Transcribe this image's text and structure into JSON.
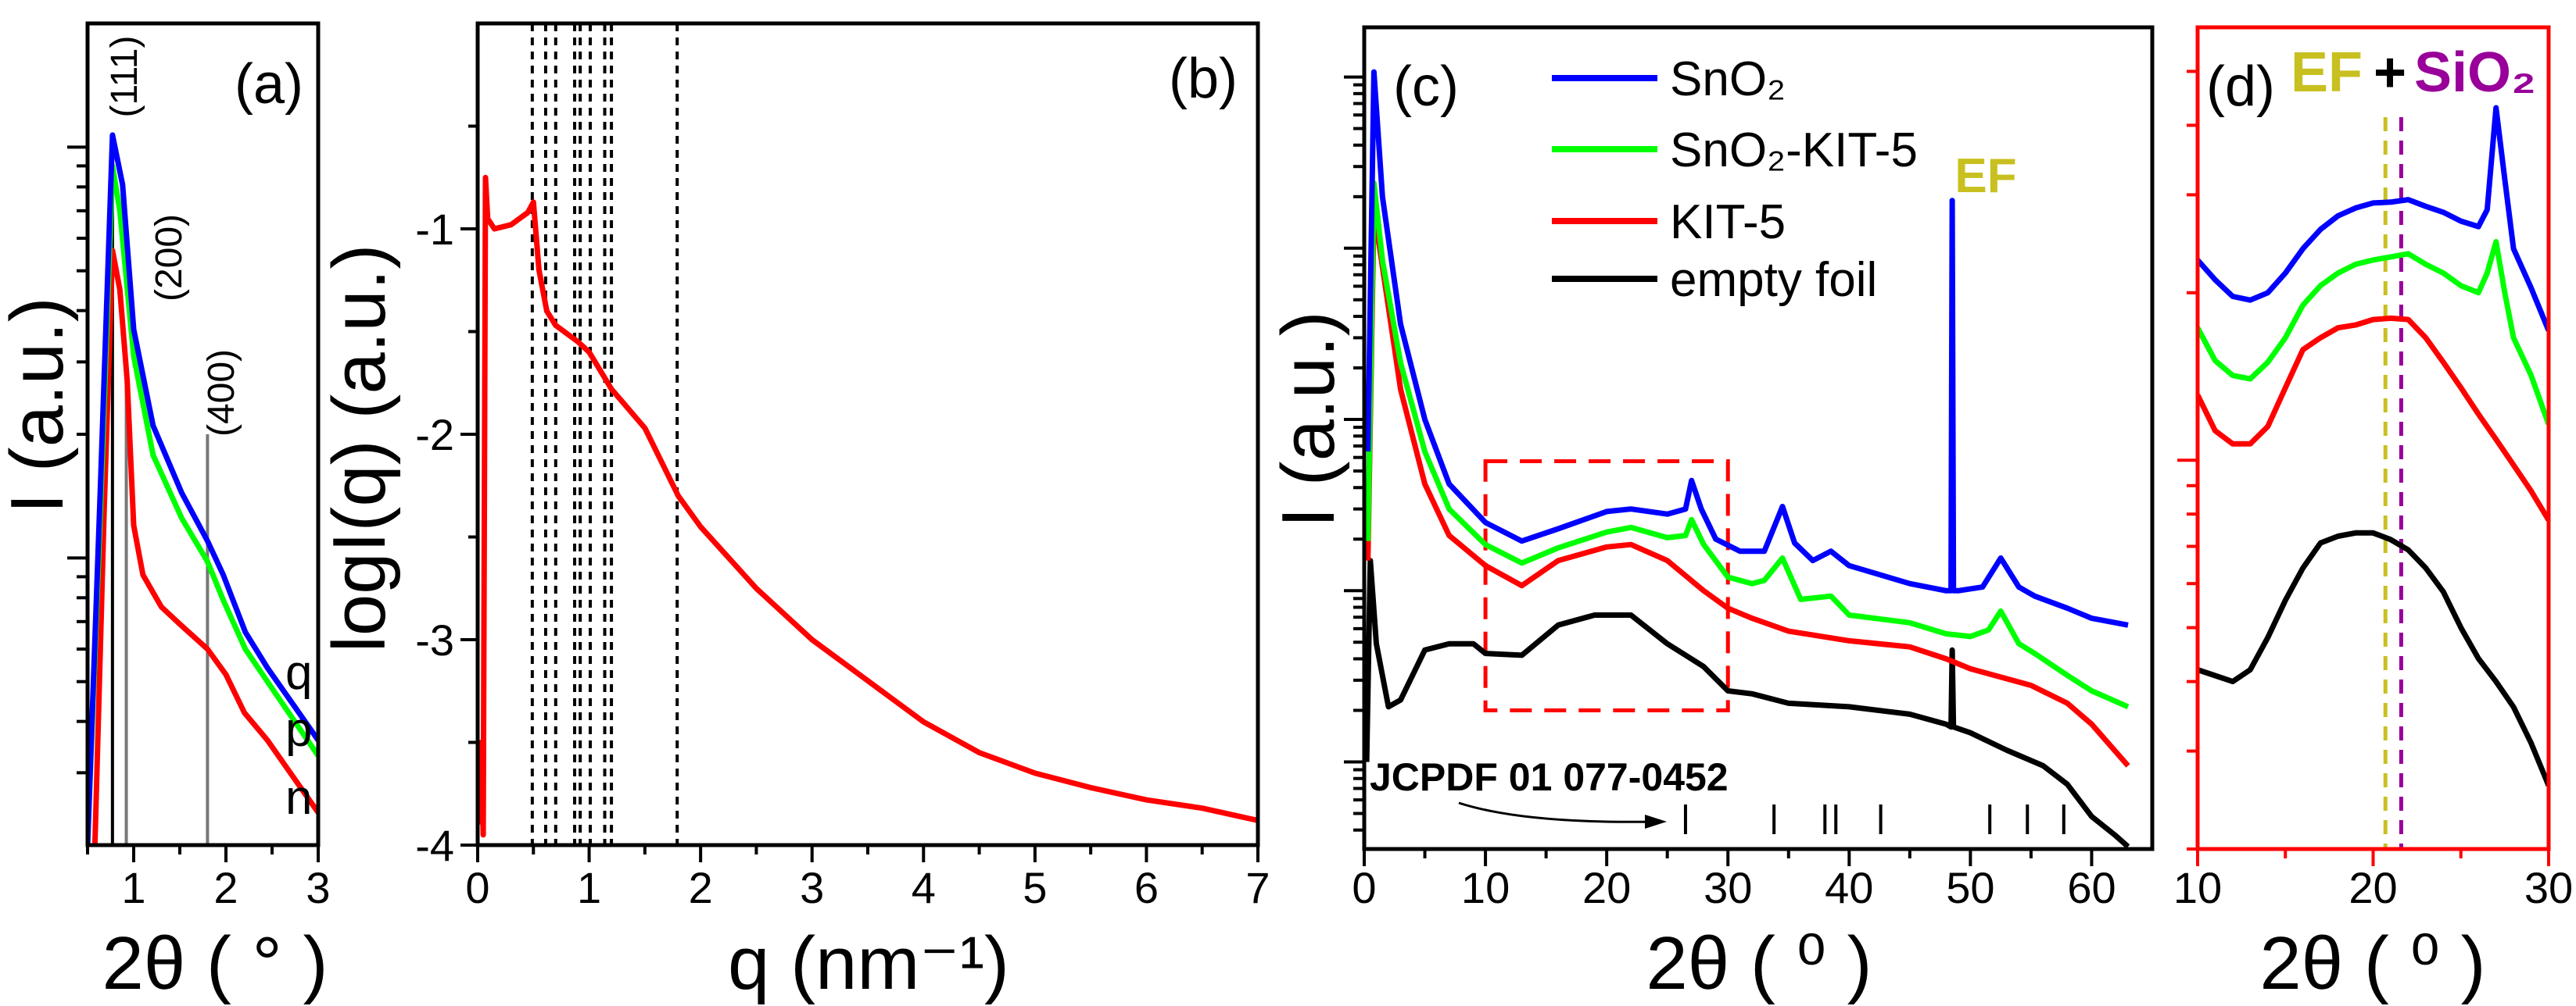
{
  "chart_data": [
    {
      "panel": "(a)",
      "type": "line",
      "xlabel": "2θ ( ° )",
      "ylabel": "I (a.u.)",
      "xlim": [
        0.5,
        3
      ],
      "ylim": [
        0.2,
        20
      ],
      "yscale": "log",
      "xticks": [
        1,
        2,
        3
      ],
      "xminor": [
        0.5,
        1.5,
        2.5
      ],
      "ymajor": [
        1,
        10
      ],
      "yminor": [
        0.3,
        0.4,
        0.5,
        0.6,
        0.7,
        0.8,
        0.9,
        2,
        3,
        4,
        5,
        6,
        7,
        8,
        9
      ],
      "ytick_labels_shown": false,
      "frame_color": "#000000",
      "series": [
        {
          "label": "q",
          "color": "#0000ff",
          "x": [
            0.5,
            0.64,
            0.77,
            0.88,
            1.0,
            1.21,
            1.52,
            1.8,
            1.97,
            2.21,
            2.45,
            3.0
          ],
          "y": [
            0.2,
            1.5,
            10.7,
            8.1,
            3.6,
            2.1,
            1.44,
            1.1,
            0.91,
            0.66,
            0.54,
            0.36
          ]
        },
        {
          "label": "p",
          "color": "#00ff00",
          "x": [
            0.5,
            0.64,
            0.77,
            0.85,
            1.0,
            1.21,
            1.52,
            1.8,
            1.97,
            2.21,
            2.45,
            3.0
          ],
          "y": [
            0.2,
            1.3,
            9.0,
            7.0,
            3.1,
            1.78,
            1.25,
            0.98,
            0.79,
            0.6,
            0.5,
            0.33
          ]
        },
        {
          "label": "n",
          "color": "#ff0000",
          "x": [
            0.58,
            0.68,
            0.77,
            0.85,
            0.93,
            1.0,
            1.1,
            1.3,
            1.5,
            1.8,
            2.0,
            2.2,
            2.45,
            3.0
          ],
          "y": [
            0.2,
            1.3,
            5.6,
            4.5,
            2.7,
            1.2,
            0.91,
            0.76,
            0.69,
            0.6,
            0.52,
            0.42,
            0.36,
            0.24
          ]
        }
      ],
      "reference_lines": [
        {
          "label": "(111)",
          "x": 0.77,
          "y_top": 10.7
        },
        {
          "label": "(200)",
          "x": 0.92,
          "y_top": 2.9
        },
        {
          "label": "(400)",
          "x": 1.8,
          "y_top": 2.0
        }
      ]
    },
    {
      "panel": "(b)",
      "type": "line",
      "xlabel": "q (nm⁻¹)",
      "ylabel": "logI(q) (a.u.)",
      "xlim": [
        0,
        7
      ],
      "ylim": [
        -4,
        0
      ],
      "yscale": "linear",
      "xticks": [
        0,
        1,
        2,
        3,
        4,
        5,
        6,
        7
      ],
      "xminor": [
        0.5,
        1.5,
        2.5,
        3.5,
        4.5,
        5.5,
        6.5
      ],
      "yticks": [
        -4,
        -3,
        -2,
        -1
      ],
      "yminor": [
        -3.5,
        -2.5,
        -1.5,
        -0.5
      ],
      "frame_color": "#000000",
      "series": [
        {
          "color": "#ff0000",
          "x": [
            0.02,
            0.03,
            0.05,
            0.07,
            0.09,
            0.15,
            0.3,
            0.45,
            0.5,
            0.55,
            0.62,
            0.7,
            0.9,
            1.0,
            1.2,
            1.5,
            1.8,
            2.0,
            2.5,
            3.0,
            3.5,
            4.0,
            4.5,
            5.0,
            5.5,
            6.0,
            6.5,
            7.0
          ],
          "y": [
            -3.9,
            -3.5,
            -3.95,
            -0.75,
            -0.95,
            -1.0,
            -0.98,
            -0.92,
            -0.87,
            -1.2,
            -1.4,
            -1.47,
            -1.55,
            -1.6,
            -1.78,
            -1.97,
            -2.3,
            -2.45,
            -2.75,
            -3.0,
            -3.2,
            -3.4,
            -3.55,
            -3.65,
            -3.72,
            -3.78,
            -3.82,
            -3.88
          ]
        }
      ],
      "dashed_lines_x": [
        0.49,
        0.61,
        0.7,
        0.87,
        0.92,
        1.01,
        1.14,
        1.2,
        1.79
      ]
    },
    {
      "panel": "(c)",
      "type": "line",
      "xlabel": "2θ ( ⁰ )",
      "ylabel": "I (a.u.)",
      "xlim": [
        0,
        65
      ],
      "ylim": [
        0.31,
        19500
      ],
      "yscale": "log",
      "xticks": [
        0,
        10,
        20,
        30,
        40,
        50,
        60
      ],
      "xminor": [
        5,
        15,
        25,
        35,
        45,
        55
      ],
      "ymajor": [
        1,
        10,
        100,
        1000,
        10000
      ],
      "ytick_labels_shown": false,
      "frame_color": "#000000",
      "legend_position": "top-center",
      "series": [
        {
          "name": "SnO₂",
          "color": "#0000ff",
          "x": [
            0.3,
            0.8,
            1.5,
            3,
            5,
            7,
            10,
            13,
            16,
            20,
            22,
            25,
            26.5,
            27,
            27.8,
            29,
            31,
            33,
            34.5,
            35.5,
            37,
            38.5,
            40,
            45,
            48,
            48.4,
            48.5,
            48.6,
            49,
            51,
            52.5,
            54,
            55.3,
            58,
            60,
            63
          ],
          "y": [
            65,
            10700,
            2000,
            360,
            100,
            42,
            25,
            19.5,
            23,
            29,
            30,
            28,
            30,
            44,
            30,
            20,
            17,
            17,
            31,
            19,
            15,
            17,
            14,
            11,
            10,
            10,
            1900,
            10,
            10,
            10.5,
            15.5,
            10.5,
            9.3,
            7.9,
            6.9,
            6.3
          ]
        },
        {
          "name": "SnO₂-KIT-5",
          "color": "#00ff00",
          "x": [
            0.3,
            0.8,
            1.5,
            3,
            5,
            7,
            10,
            13,
            16,
            20,
            22,
            25,
            26.5,
            27,
            28,
            30,
            32,
            33,
            34.5,
            36,
            38.5,
            40,
            45,
            48,
            50,
            51.5,
            52.5,
            54,
            55.3,
            58,
            60,
            63
          ],
          "y": [
            19.5,
            2400,
            850,
            214,
            65,
            30,
            18.6,
            14.5,
            17.8,
            22,
            23.4,
            20.4,
            21,
            26,
            18.6,
            12,
            11,
            11.5,
            15.5,
            8.9,
            9.3,
            7.2,
            6.5,
            5.6,
            5.4,
            5.9,
            7.6,
            4.9,
            4.3,
            3.2,
            2.6,
            2.1
          ]
        },
        {
          "name": "KIT-5",
          "color": "#ff0000",
          "x": [
            0.3,
            0.8,
            1.5,
            3,
            5,
            7,
            10,
            13,
            16,
            20,
            22,
            25,
            28,
            30,
            32,
            35,
            40,
            45,
            48,
            50,
            55,
            58,
            60,
            63
          ],
          "y": [
            15,
            1700,
            780,
            150,
            42,
            21,
            14,
            10.7,
            15,
            18,
            18.6,
            15,
            10,
            7.9,
            6.9,
            5.8,
            5.1,
            4.7,
            4.0,
            3.5,
            2.8,
            2.2,
            1.66,
            0.95
          ]
        },
        {
          "name": "empty foil",
          "color": "#000000",
          "x": [
            0.2,
            0.5,
            1,
            2,
            3,
            5,
            7,
            9,
            10,
            13,
            16,
            19,
            22,
            25,
            28,
            30,
            32,
            35,
            40,
            45,
            48,
            48.4,
            48.5,
            48.6,
            50,
            53,
            56,
            58,
            60,
            62,
            63
          ],
          "y": [
            1.0,
            15,
            4.9,
            2.1,
            2.3,
            4.5,
            4.9,
            4.9,
            4.3,
            4.2,
            6.3,
            7.2,
            7.2,
            4.9,
            3.6,
            2.6,
            2.5,
            2.2,
            2.1,
            1.9,
            1.66,
            1.6,
            4.5,
            1.6,
            1.48,
            1.17,
            0.95,
            0.74,
            0.48,
            0.37,
            0.32
          ]
        }
      ],
      "highlight_region": {
        "x": [
          10,
          30
        ],
        "y": [
          2,
          57
        ],
        "color": "#ff0000"
      },
      "annotations": {
        "ef_label": "EF",
        "ef_color": "#c8c020",
        "reference_label": "JCPDF 01 077-0452"
      },
      "reference_ticks_x": [
        26.5,
        33.8,
        38.0,
        38.9,
        42.6,
        51.6,
        54.7,
        57.7
      ]
    },
    {
      "panel": "(d)",
      "type": "line",
      "xlabel": "2θ ( ⁰ )",
      "xlim": [
        10,
        30
      ],
      "ylim": [
        2,
        60
      ],
      "yscale": "log",
      "xticks": [
        10,
        20,
        30
      ],
      "xminor": [
        15,
        25
      ],
      "ymajor": [
        10
      ],
      "yminor": [
        2,
        3,
        4,
        5,
        6,
        7,
        8,
        9,
        20,
        30,
        40,
        50
      ],
      "ytick_labels_shown": false,
      "frame_color": "#ff0000",
      "series": [
        {
          "color": "#0000ff",
          "x": [
            10,
            11,
            12,
            13,
            14,
            15,
            16,
            17,
            18,
            19,
            20,
            21,
            22,
            23,
            24,
            25,
            26,
            26.5,
            27,
            27.5,
            28,
            29,
            30
          ],
          "y": [
            22.9,
            21.1,
            19.7,
            19.4,
            20,
            21.7,
            24,
            26,
            27.5,
            28.4,
            29,
            29.1,
            29.4,
            28.6,
            27.9,
            26.9,
            26.3,
            28.2,
            43,
            32,
            24,
            20.4,
            17.1
          ]
        },
        {
          "color": "#00ff00",
          "x": [
            10,
            11,
            12,
            13,
            14,
            15,
            16,
            17,
            18,
            19,
            20,
            21,
            22,
            23,
            24,
            25,
            26,
            26.5,
            27,
            27.5,
            28,
            29,
            30
          ],
          "y": [
            17.3,
            15.1,
            14.2,
            14,
            15,
            16.6,
            19,
            20.6,
            21.7,
            22.5,
            22.9,
            23.2,
            23.5,
            22.5,
            21.7,
            20.6,
            20,
            21.7,
            24.7,
            20,
            16.6,
            14.2,
            11.6
          ]
        },
        {
          "color": "#ff0000",
          "x": [
            10,
            11,
            12,
            13,
            14,
            15,
            16,
            17,
            18,
            19,
            20,
            21,
            22,
            23,
            24,
            25,
            26,
            27,
            28,
            29,
            30
          ],
          "y": [
            13.1,
            11.3,
            10.7,
            10.7,
            11.5,
            13.5,
            15.8,
            16.6,
            17.3,
            17.5,
            17.9,
            18,
            17.9,
            16.6,
            15,
            13.5,
            12.1,
            10.9,
            9.8,
            8.8,
            7.8
          ]
        },
        {
          "color": "#000000",
          "x": [
            10,
            11,
            12,
            13,
            14,
            15,
            16,
            17,
            18,
            19,
            20,
            21,
            22,
            23,
            24,
            25,
            26,
            27,
            28,
            29,
            30
          ],
          "y": [
            4.2,
            4.1,
            4.0,
            4.2,
            4.8,
            5.6,
            6.4,
            7.1,
            7.3,
            7.4,
            7.4,
            7.2,
            6.9,
            6.4,
            5.8,
            5.0,
            4.4,
            4.0,
            3.6,
            3.1,
            2.6
          ]
        }
      ],
      "marker_lines": [
        {
          "label": "EF",
          "x": 20.7,
          "color": "#c8c020"
        },
        {
          "label": "SiO₂",
          "x": 21.6,
          "color": "#990099"
        }
      ],
      "annotations": {
        "plus": "+"
      }
    }
  ]
}
